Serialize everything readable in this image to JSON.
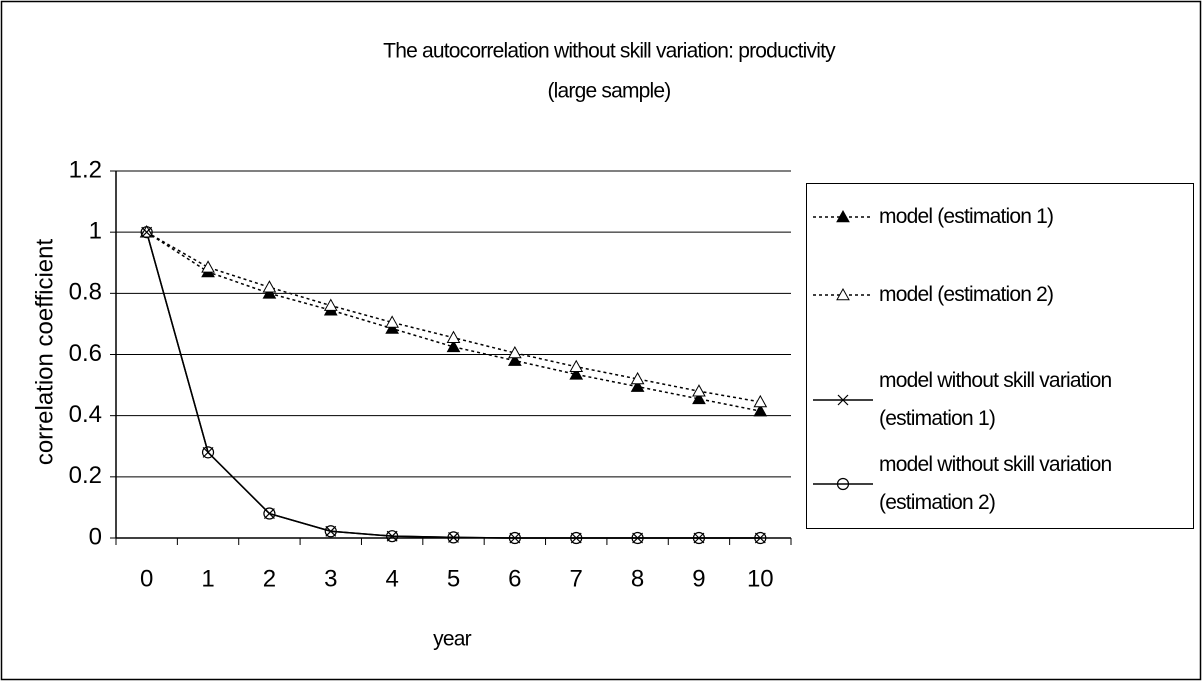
{
  "chart_data": {
    "type": "line",
    "title": "The autocorrelation without skill variation: productivity",
    "subtitle": "(large sample)",
    "x_label": "year",
    "y_label": "correlation coefficient",
    "categories": [
      "0",
      "1",
      "2",
      "3",
      "4",
      "5",
      "6",
      "7",
      "8",
      "9",
      "10"
    ],
    "ylim": [
      0,
      1.2
    ],
    "yticks": [
      0,
      0.2,
      0.4,
      0.6,
      0.8,
      1,
      1.2
    ],
    "grid": true,
    "legend": "right",
    "series": [
      {
        "name": "model (estimation 1)",
        "color": "#000000",
        "line_style": "dotted",
        "marker": "triangle-filled",
        "values": [
          1,
          0.87,
          0.8,
          0.745,
          0.685,
          0.625,
          0.58,
          0.535,
          0.495,
          0.455,
          0.415
        ]
      },
      {
        "name": "model (estimation 2)",
        "color": "#000000",
        "line_style": "dotted",
        "marker": "triangle-open",
        "values": [
          1,
          0.885,
          0.82,
          0.76,
          0.705,
          0.655,
          0.605,
          0.56,
          0.52,
          0.48,
          0.445
        ]
      },
      {
        "name": "model without skill variation (estimation 1)",
        "color": "#000000",
        "line_style": "solid",
        "marker": "x",
        "values": [
          1,
          0.28,
          0.08,
          0.022,
          0.006,
          0.002,
          0,
          0,
          0,
          0,
          0
        ]
      },
      {
        "name": "model without skill variation (estimation 2)",
        "color": "#000000",
        "line_style": "solid",
        "marker": "circle",
        "values": [
          1,
          0.28,
          0.08,
          0.022,
          0.006,
          0.002,
          0,
          0,
          0,
          0,
          0
        ]
      }
    ]
  }
}
